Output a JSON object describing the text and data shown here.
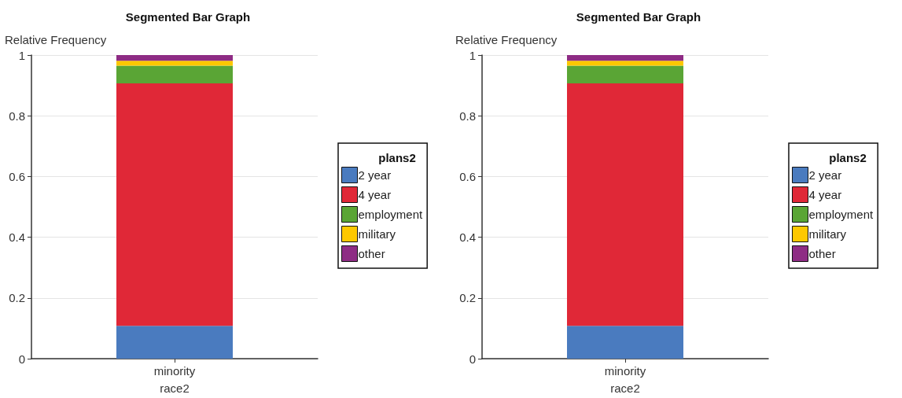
{
  "chart_data": [
    {
      "type": "bar",
      "title": "Segmented Bar Graph",
      "ylabel": "Relative Frequency",
      "xlabel": "race2",
      "legend_title": "plans2",
      "categories": [
        "minority"
      ],
      "stacked": true,
      "legend": "right",
      "grid": "y",
      "ylim": [
        0,
        1
      ],
      "yticks": [
        0,
        0.2,
        0.4,
        0.6,
        0.8,
        1
      ],
      "series": [
        {
          "name": "2 year",
          "color": "#4a7bbf",
          "values": [
            0.108
          ]
        },
        {
          "name": "4 year",
          "color": "#e02837",
          "values": [
            0.799
          ]
        },
        {
          "name": "employment",
          "color": "#5aa535",
          "values": [
            0.058
          ]
        },
        {
          "name": "military",
          "color": "#fdc800",
          "values": [
            0.016
          ]
        },
        {
          "name": "other",
          "color": "#8e2c84",
          "values": [
            0.019
          ]
        }
      ]
    },
    {
      "type": "bar",
      "title": "Segmented Bar Graph",
      "ylabel": "Relative Frequency",
      "xlabel": "race2",
      "legend_title": "plans2",
      "categories": [
        "minority"
      ],
      "stacked": true,
      "legend": "right",
      "grid": "y",
      "ylim": [
        0,
        1
      ],
      "yticks": [
        0,
        0.2,
        0.4,
        0.6,
        0.8,
        1
      ],
      "series": [
        {
          "name": "2 year",
          "color": "#4a7bbf",
          "values": [
            0.108
          ]
        },
        {
          "name": "4 year",
          "color": "#e02837",
          "values": [
            0.799
          ]
        },
        {
          "name": "employment",
          "color": "#5aa535",
          "values": [
            0.058
          ]
        },
        {
          "name": "military",
          "color": "#fdc800",
          "values": [
            0.016
          ]
        },
        {
          "name": "other",
          "color": "#8e2c84",
          "values": [
            0.019
          ]
        }
      ]
    }
  ]
}
